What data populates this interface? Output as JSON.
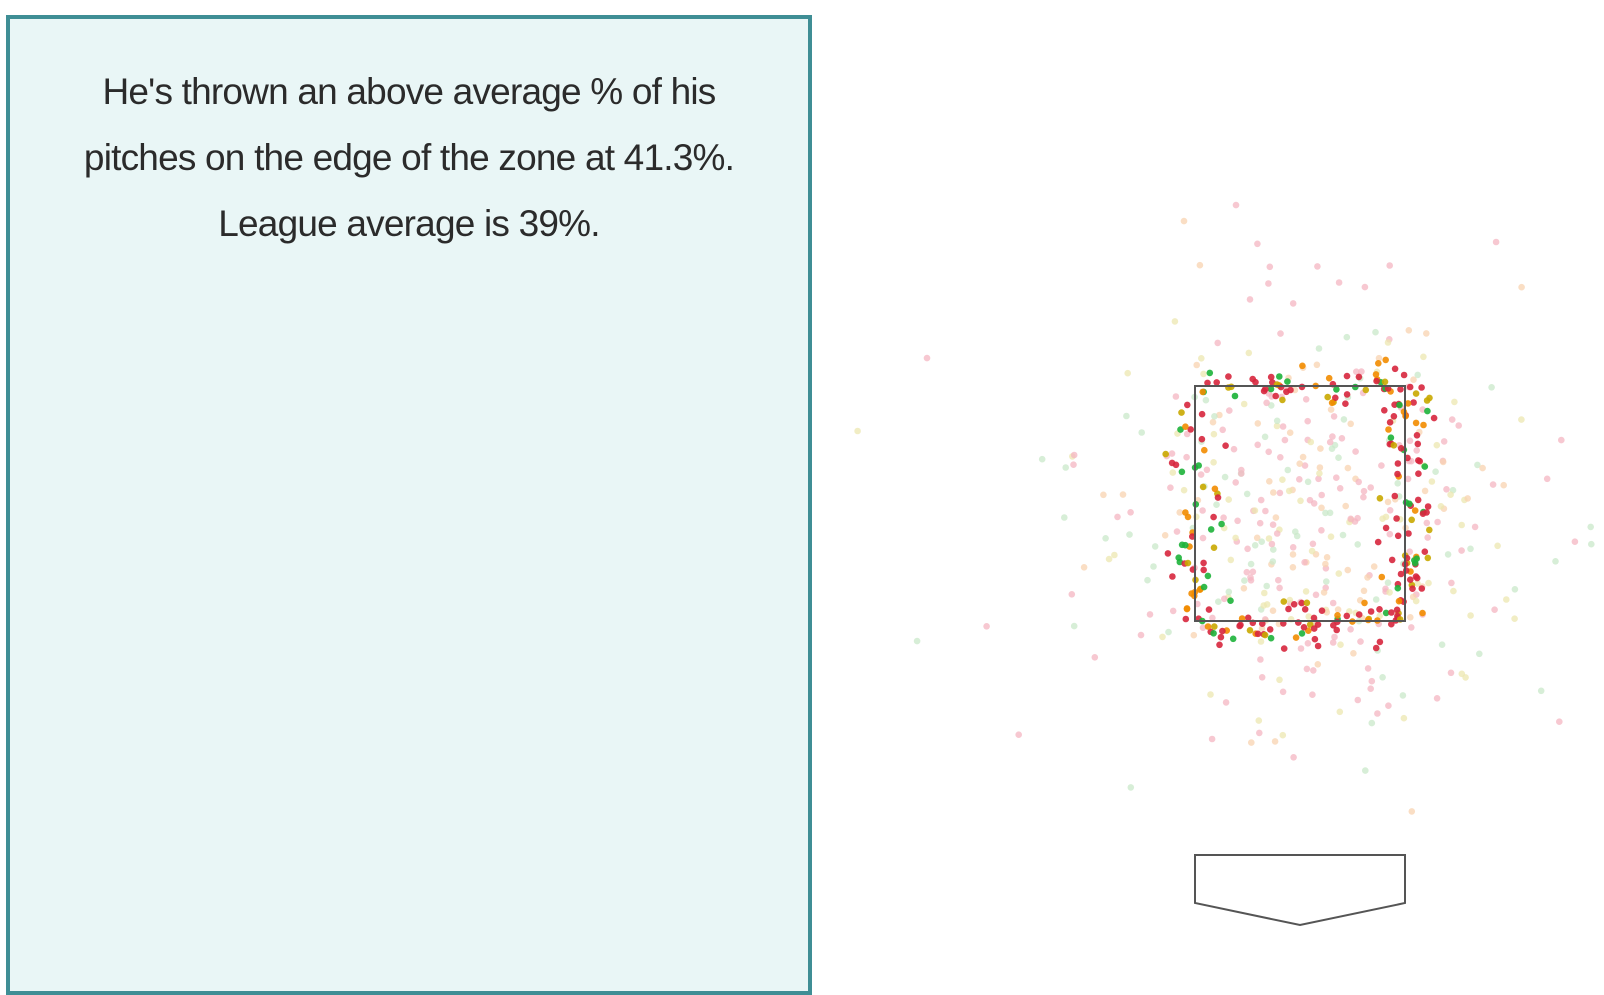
{
  "panel": {
    "text": "He's thrown an above average % of his pitches on the edge of the zone at 41.3%. League average is 39%."
  }
}
